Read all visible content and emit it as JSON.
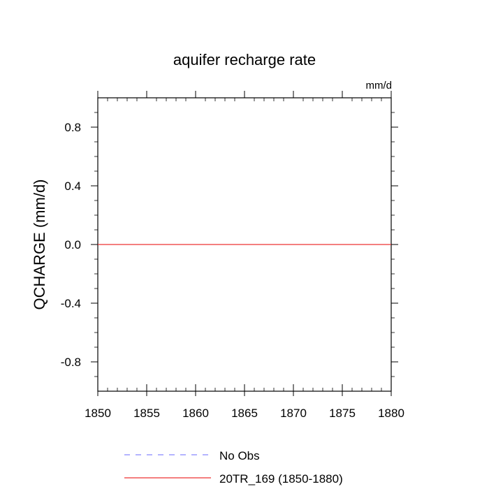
{
  "chart_data": {
    "type": "line",
    "title": "aquifer recharge rate",
    "units": "mm/d",
    "ylabel": "QCHARGE  (mm/d)",
    "xlabel": "",
    "xlim": [
      1850,
      1880
    ],
    "ylim": [
      -1.0,
      1.0
    ],
    "x_ticks": [
      1850,
      1855,
      1860,
      1865,
      1870,
      1875,
      1880
    ],
    "x_tick_labels": [
      "1850",
      "1855",
      "1860",
      "1865",
      "1870",
      "1875",
      "1880"
    ],
    "y_ticks": [
      -0.8,
      -0.4,
      0.0,
      0.4,
      0.8
    ],
    "y_tick_labels": [
      "-0.8",
      "-0.4",
      "0.0",
      "0.4",
      "0.8"
    ],
    "grid": false,
    "legend_position": "bottom",
    "series": [
      {
        "name": "No Obs",
        "color": "#8888ff",
        "dashed": true,
        "x": [],
        "y": []
      },
      {
        "name": "20TR_169 (1850-1880)",
        "color": "#ee3333",
        "dashed": false,
        "x": [
          1850,
          1855,
          1860,
          1865,
          1870,
          1875,
          1880
        ],
        "y": [
          0,
          0,
          0,
          0,
          0,
          0,
          0
        ]
      }
    ]
  }
}
